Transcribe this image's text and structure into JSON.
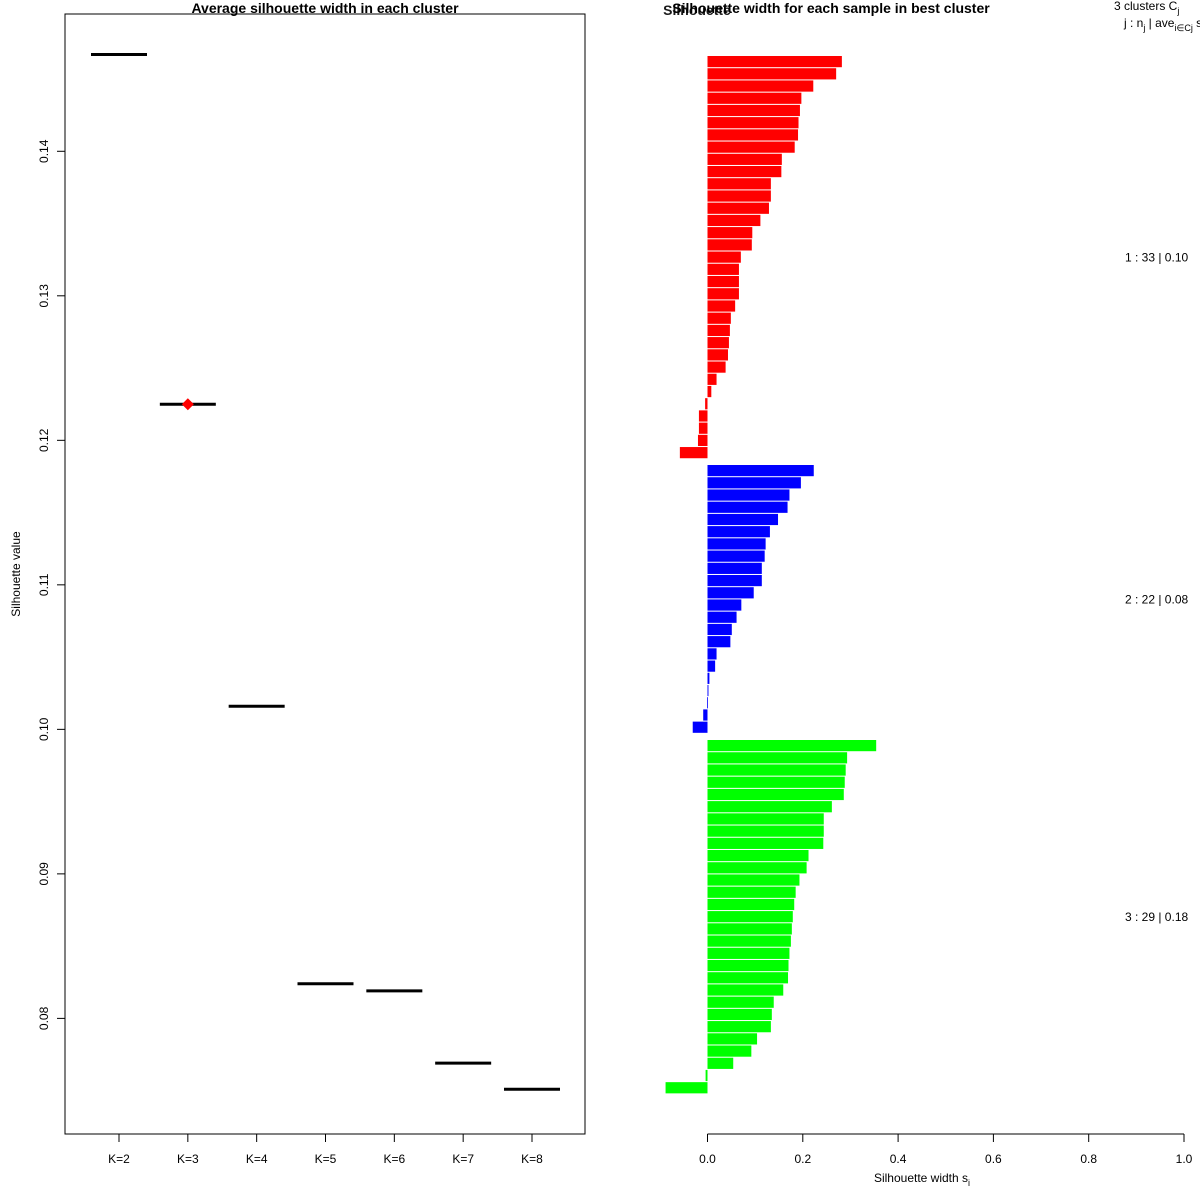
{
  "chart_data": [
    {
      "type": "scatter",
      "title": "Average silhouette width in each cluster",
      "xlabel": "",
      "ylabel": "Silhouette value",
      "categories": [
        "K=2",
        "K=3",
        "K=4",
        "K=5",
        "K=6",
        "K=7",
        "K=8"
      ],
      "values": [
        0.1467,
        0.1225,
        0.1016,
        0.0824,
        0.0819,
        0.0769,
        0.0751
      ],
      "best_index": 1,
      "best_marker_color": "#ff0000",
      "ylim": [
        0.072,
        0.1495
      ],
      "yticks": [
        "0.08",
        "0.09",
        "0.10",
        "0.11",
        "0.12",
        "0.13",
        "0.14"
      ],
      "ytick_values": [
        0.08,
        0.09,
        0.1,
        0.11,
        0.12,
        0.13,
        0.14
      ],
      "grid": false
    },
    {
      "type": "bar",
      "orientation": "horizontal",
      "title": "Silhouette width for each sample in best cluster",
      "overlap_title": "Silhouette",
      "xlabel": "Silhouette width s",
      "xlabel_subscript": "i",
      "xlim": [
        -0.09,
        1.0
      ],
      "xticks": [
        "0.0",
        "0.2",
        "0.4",
        "0.6",
        "0.8",
        "1.0"
      ],
      "xtick_values": [
        0.0,
        0.2,
        0.4,
        0.6,
        0.8,
        1.0
      ],
      "legend_header_line1": "3  clusters  C",
      "legend_header_line1_sub": "j",
      "legend_header_line2": "j :  n",
      "legend_header_line2_mid": " | ave",
      "legend_header_line2_sub1": "j",
      "legend_header_line2_sub2": "i∈Cj",
      "legend_header_line2_tail": " s",
      "series": [
        {
          "label": "1 :  33  |  0.10",
          "color": "#ff0000",
          "values": [
            0.282,
            0.27,
            0.222,
            0.197,
            0.194,
            0.191,
            0.19,
            0.183,
            0.156,
            0.155,
            0.133,
            0.133,
            0.129,
            0.111,
            0.094,
            0.093,
            0.07,
            0.066,
            0.066,
            0.066,
            0.058,
            0.049,
            0.047,
            0.045,
            0.043,
            0.038,
            0.019,
            0.008,
            -0.005,
            -0.018,
            -0.018,
            -0.02,
            -0.058
          ]
        },
        {
          "label": "2 :  22  |  0.08",
          "color": "#0000ff",
          "values": [
            0.223,
            0.196,
            0.172,
            0.168,
            0.148,
            0.131,
            0.122,
            0.12,
            0.114,
            0.114,
            0.097,
            0.071,
            0.061,
            0.051,
            0.048,
            0.019,
            0.016,
            0.004,
            0.002,
            -0.001,
            -0.009,
            -0.031
          ]
        },
        {
          "label": "3 :  29  |  0.18",
          "color": "#00ff00",
          "values": [
            0.354,
            0.293,
            0.29,
            0.288,
            0.286,
            0.261,
            0.244,
            0.244,
            0.243,
            0.212,
            0.208,
            0.193,
            0.185,
            0.182,
            0.179,
            0.177,
            0.175,
            0.172,
            0.17,
            0.169,
            0.159,
            0.139,
            0.135,
            0.133,
            0.104,
            0.092,
            0.054,
            -0.004,
            -0.088
          ]
        }
      ],
      "grid": false
    }
  ]
}
